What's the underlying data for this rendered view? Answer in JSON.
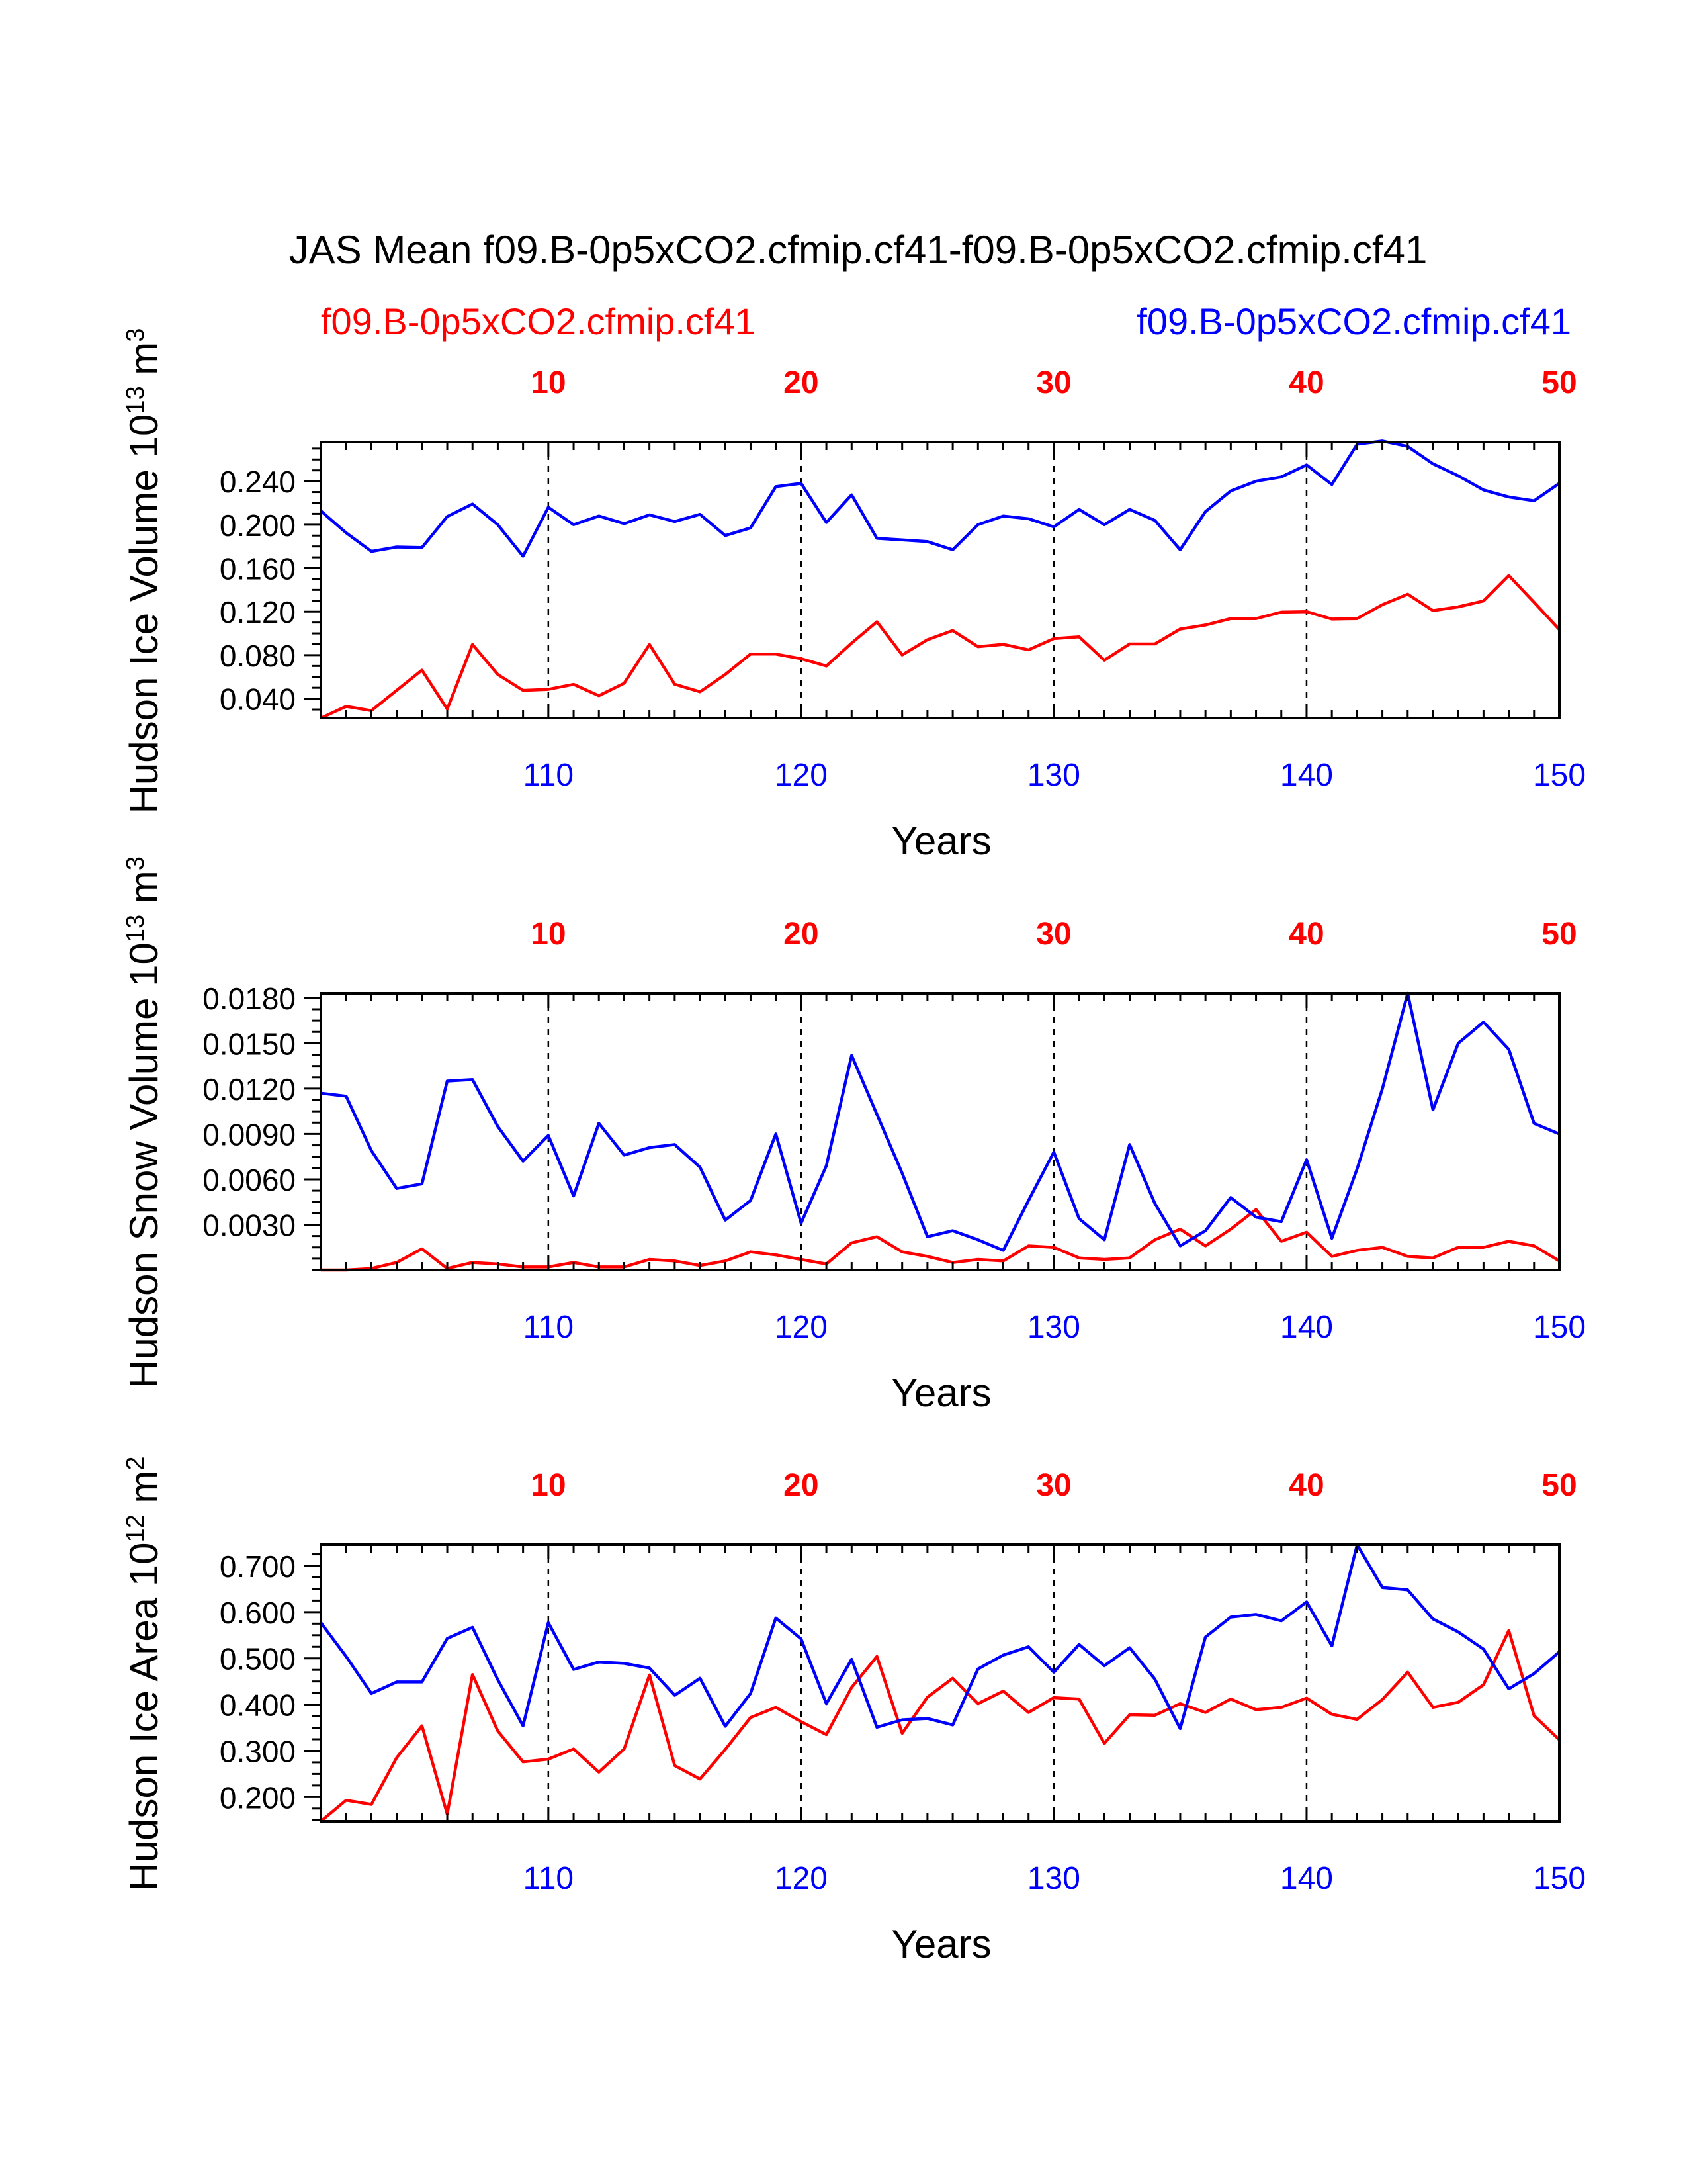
{
  "title": "JAS Mean f09.B-0p5xCO2.cfmip.cf41-f09.B-0p5xCO2.cfmip.cf41",
  "legend": {
    "red_label": "f09.B-0p5xCO2.cfmip.cf41",
    "blue_label": "f09.B-0p5xCO2.cfmip.cf41"
  },
  "colors": {
    "red": "#ff0000",
    "blue": "#0000ff",
    "axis": "#000000"
  },
  "chart_data": [
    {
      "type": "line",
      "ylabel": "Hudson Ice Volume 10",
      "yexp": "13",
      "yunit": " m",
      "yunitexp": "3",
      "xlabel": "Years",
      "ylim": [
        0.0221,
        0.276
      ],
      "yticks": [
        0.04,
        0.08,
        0.12,
        0.16,
        0.2,
        0.24
      ],
      "yticklabels": [
        "0.040",
        "0.080",
        "0.120",
        "0.160",
        "0.200",
        "0.240"
      ],
      "bottom_axis": {
        "range": [
          101,
          150
        ],
        "ticks": [
          110,
          120,
          130,
          140,
          150
        ]
      },
      "top_axis": {
        "range": [
          1,
          50
        ],
        "ticks": [
          10,
          20,
          30,
          40,
          50
        ]
      },
      "series": [
        {
          "name": "f09.B-0p5xCO2.cfmip.cf41",
          "color": "red",
          "axis": "top",
          "x_start": 1,
          "values": [
            0.0221,
            0.0328,
            0.0289,
            0.0476,
            0.0662,
            0.0304,
            0.0898,
            0.0622,
            0.0476,
            0.0485,
            0.0531,
            0.0427,
            0.0541,
            0.0898,
            0.0532,
            0.0463,
            0.0622,
            0.081,
            0.081,
            0.0767,
            0.07,
            0.0911,
            0.1107,
            0.0802,
            0.0942,
            0.1026,
            0.0878,
            0.0899,
            0.0849,
            0.0952,
            0.0969,
            0.0753,
            0.0903,
            0.0903,
            0.104,
            0.1077,
            0.1136,
            0.1136,
            0.1196,
            0.12,
            0.1132,
            0.1136,
            0.1264,
            0.136,
            0.121,
            0.1244,
            0.1298,
            0.1532,
            0.1286,
            0.1035
          ]
        },
        {
          "name": "f09.B-0p5xCO2.cfmip.cf41",
          "color": "blue",
          "axis": "bottom",
          "x_start": 101,
          "values": [
            0.2127,
            0.1925,
            0.1755,
            0.1795,
            0.179,
            0.2075,
            0.219,
            0.2,
            0.171,
            0.216,
            0.2,
            0.208,
            0.201,
            0.209,
            0.203,
            0.2095,
            0.19,
            0.197,
            0.235,
            0.238,
            0.202,
            0.2275,
            0.1875,
            0.186,
            0.1845,
            0.177,
            0.2,
            0.208,
            0.2055,
            0.198,
            0.214,
            0.2,
            0.214,
            0.204,
            0.177,
            0.212,
            0.231,
            0.24,
            0.244,
            0.255,
            0.237,
            0.274,
            0.277,
            0.272,
            0.256,
            0.245,
            0.232,
            0.2255,
            0.222,
            0.238
          ]
        }
      ]
    },
    {
      "type": "line",
      "ylabel": "Hudson Snow Volume 10",
      "yexp": "13",
      "yunit": " m",
      "yunitexp": "3",
      "xlabel": "Years",
      "ylim": [
        0.0,
        0.0183
      ],
      "yticks": [
        0.003,
        0.006,
        0.009,
        0.012,
        0.015,
        0.018
      ],
      "yticklabels": [
        "0.0030",
        "0.0060",
        "0.0090",
        "0.0120",
        "0.0150",
        "0.0180"
      ],
      "bottom_axis": {
        "range": [
          101,
          150
        ],
        "ticks": [
          110,
          120,
          130,
          140,
          150
        ]
      },
      "top_axis": {
        "range": [
          1,
          50
        ],
        "ticks": [
          10,
          20,
          30,
          40,
          50
        ]
      },
      "series": [
        {
          "name": "f09.B-0p5xCO2.cfmip.cf41",
          "color": "red",
          "axis": "top",
          "x_start": 1,
          "values": [
            0.0,
            0.0,
            0.0001,
            0.0005,
            0.0014,
            0.0001,
            0.0005,
            0.0004,
            0.0002,
            0.0002,
            0.0005,
            0.0002,
            0.0002,
            0.0007,
            0.0006,
            0.0003,
            0.0006,
            0.0012,
            0.001,
            0.0007,
            0.0004,
            0.0018,
            0.0022,
            0.0012,
            0.0009,
            0.0005,
            0.0007,
            0.0006,
            0.0016,
            0.0015,
            0.0008,
            0.0007,
            0.0008,
            0.002,
            0.0027,
            0.0016,
            0.0027,
            0.004,
            0.0019,
            0.0025,
            0.0009,
            0.0013,
            0.0015,
            0.0009,
            0.0008,
            0.0015,
            0.0015,
            0.0019,
            0.0016,
            0.0006
          ]
        },
        {
          "name": "f09.B-0p5xCO2.cfmip.cf41",
          "color": "blue",
          "axis": "bottom",
          "x_start": 101,
          "values": [
            0.0117,
            0.0115,
            0.0079,
            0.0054,
            0.0057,
            0.0125,
            0.0126,
            0.0095,
            0.0072,
            0.0089,
            0.0049,
            0.0097,
            0.0076,
            0.0081,
            0.0083,
            0.0068,
            0.0033,
            0.0046,
            0.009,
            0.0031,
            0.0069,
            0.0142,
            0.0103,
            0.0064,
            0.0022,
            0.0026,
            0.002,
            0.0013,
            0.0046,
            0.0078,
            0.0034,
            0.002,
            0.0083,
            0.0044,
            0.0016,
            0.0026,
            0.0048,
            0.0035,
            0.0032,
            0.0073,
            0.0021,
            0.0067,
            0.012,
            0.0183,
            0.0106,
            0.015,
            0.0164,
            0.0146,
            0.0097,
            0.009
          ]
        }
      ]
    },
    {
      "type": "line",
      "ylabel": "Hudson Ice Area 10",
      "yexp": "12",
      "yunit": " m",
      "yunitexp": "2",
      "xlabel": "Years",
      "ylim": [
        0.1475,
        0.7458
      ],
      "yticks": [
        0.2,
        0.3,
        0.4,
        0.5,
        0.6,
        0.7
      ],
      "yticklabels": [
        "0.200",
        "0.300",
        "0.400",
        "0.500",
        "0.600",
        "0.700"
      ],
      "bottom_axis": {
        "range": [
          101,
          150
        ],
        "ticks": [
          110,
          120,
          130,
          140,
          150
        ]
      },
      "top_axis": {
        "range": [
          1,
          50
        ],
        "ticks": [
          10,
          20,
          30,
          40,
          50
        ]
      },
      "series": [
        {
          "name": "f09.B-0p5xCO2.cfmip.cf41",
          "color": "red",
          "axis": "top",
          "x_start": 1,
          "values": [
            0.1475,
            0.193,
            0.184,
            0.285,
            0.354,
            0.163,
            0.465,
            0.343,
            0.276,
            0.282,
            0.304,
            0.254,
            0.304,
            0.464,
            0.268,
            0.239,
            0.303,
            0.372,
            0.394,
            0.363,
            0.335,
            0.437,
            0.504,
            0.338,
            0.416,
            0.457,
            0.402,
            0.429,
            0.383,
            0.415,
            0.412,
            0.316,
            0.378,
            0.377,
            0.402,
            0.383,
            0.412,
            0.389,
            0.394,
            0.414,
            0.379,
            0.368,
            0.411,
            0.47,
            0.394,
            0.405,
            0.443,
            0.56,
            0.376,
            0.324
          ]
        },
        {
          "name": "f09.B-0p5xCO2.cfmip.cf41",
          "color": "blue",
          "axis": "bottom",
          "x_start": 101,
          "values": [
            0.577,
            0.504,
            0.424,
            0.449,
            0.449,
            0.543,
            0.567,
            0.454,
            0.354,
            0.577,
            0.476,
            0.492,
            0.489,
            0.479,
            0.42,
            0.457,
            0.353,
            0.424,
            0.587,
            0.542,
            0.402,
            0.498,
            0.351,
            0.367,
            0.37,
            0.356,
            0.477,
            0.507,
            0.525,
            0.47,
            0.53,
            0.484,
            0.523,
            0.455,
            0.348,
            0.546,
            0.589,
            0.595,
            0.581,
            0.622,
            0.527,
            0.7458,
            0.653,
            0.648,
            0.585,
            0.557,
            0.52,
            0.434,
            0.467,
            0.514
          ]
        }
      ]
    }
  ]
}
